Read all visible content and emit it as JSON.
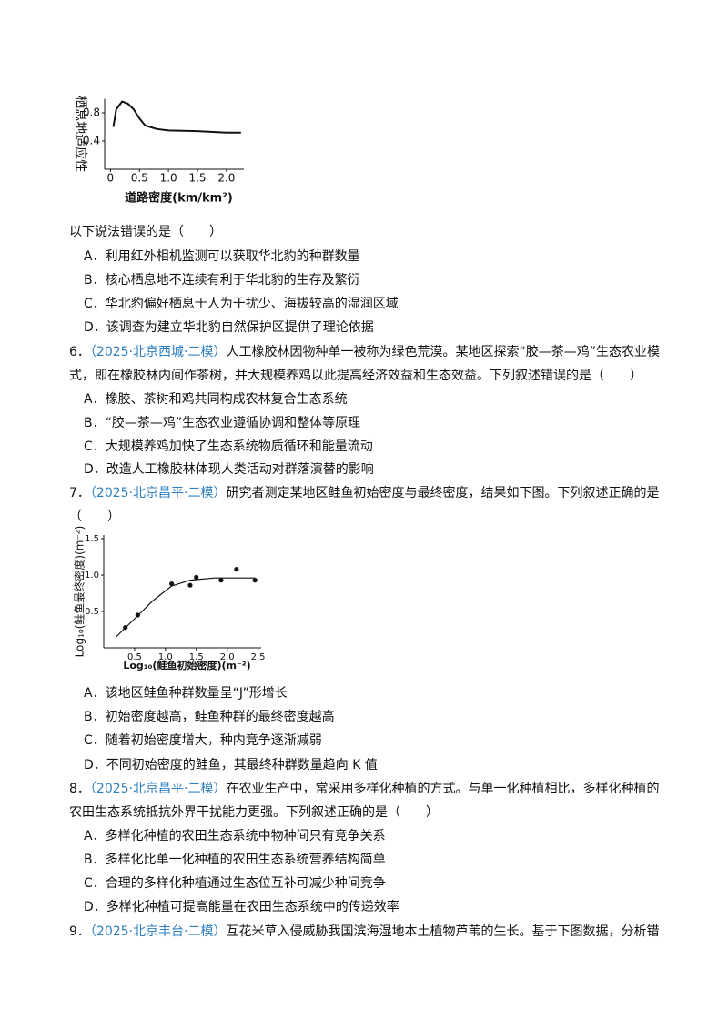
{
  "chart_data": [
    {
      "type": "line",
      "ylabel": "栖息地适应性",
      "xlabel": "道路密度(km/km²)",
      "xlim": [
        -0.1,
        2.3
      ],
      "ylim": [
        0,
        1.0
      ],
      "xticks": [
        0,
        0.5,
        {
          "value": 1.0,
          "label": "1.0"
        },
        1.5,
        {
          "value": 2.0,
          "label": "2.0"
        }
      ],
      "yticks": [
        0.4,
        0.8
      ],
      "color": "#111111",
      "x": [
        0.05,
        0.1,
        0.2,
        0.3,
        0.4,
        0.5,
        0.6,
        0.8,
        1.0,
        1.5,
        2.0,
        2.25
      ],
      "y": [
        0.6,
        0.85,
        0.96,
        0.93,
        0.85,
        0.72,
        0.62,
        0.57,
        0.55,
        0.54,
        0.52,
        0.52
      ]
    },
    {
      "type": "scatter",
      "ylabel": "Log₁₀(鲑鱼最终密度)(m⁻²)",
      "xlabel": "Log₁₀(鲑鱼初始密度)(m⁻²)",
      "xlim": [
        0,
        2.55
      ],
      "ylim": [
        0,
        1.55
      ],
      "xticks": [
        0.5,
        {
          "value": 1.0,
          "label": "1.0"
        },
        1.5,
        {
          "value": 2.0,
          "label": "2.0"
        },
        2.5
      ],
      "yticks": [
        0.5,
        {
          "value": 1.0,
          "label": "1.0"
        },
        1.5
      ],
      "color": "#111111",
      "points": {
        "x": [
          0.35,
          0.55,
          1.1,
          1.4,
          1.5,
          1.9,
          2.15,
          2.45
        ],
        "y": [
          0.28,
          0.45,
          0.88,
          0.86,
          0.97,
          0.93,
          1.08,
          0.93
        ]
      },
      "curve": {
        "x": [
          0.2,
          0.5,
          0.8,
          1.1,
          1.4,
          1.8,
          2.2,
          2.45
        ],
        "y": [
          0.15,
          0.4,
          0.65,
          0.85,
          0.93,
          0.96,
          0.96,
          0.96
        ]
      }
    }
  ],
  "document": {
    "q5": {
      "prompt": "以下说法错误的是（　　）",
      "options": [
        "A．利用红外相机监测可以获取华北豹的种群数量",
        "B．核心栖息地不连续有利于华北豹的生存及繁衍",
        "C．华北豹偏好栖息于人为干扰少、海拔较高的湿润区域",
        "D．该调查为建立华北豹自然保护区提供了理论依据"
      ]
    },
    "q6": {
      "number": "6．",
      "source": "（2025·北京西城·二模）",
      "stem": "人工橡胶林因物种单一被称为绿色荒漠。某地区探索“胶—茶—鸡”生态农业模式，即在橡胶林内间作茶树，并大规模养鸡以此提高经济效益和生态效益。下列叙述错误的是（　　）",
      "options": [
        "A．橡胶、茶树和鸡共同构成农林复合生态系统",
        "B．“胶—茶—鸡”生态农业遵循协调和整体等原理",
        "C．大规模养鸡加快了生态系统物质循环和能量流动",
        "D．改造人工橡胶林体现人类活动对群落演替的影响"
      ]
    },
    "q7": {
      "number": "7．",
      "source": "（2025·北京昌平·二模）",
      "stem": "研究者测定某地区鲑鱼初始密度与最终密度，结果如下图。下列叙述正确的是（　　）",
      "options": [
        "A．该地区鲑鱼种群数量呈“J”形增长",
        "B．初始密度越高，鲑鱼种群的最终密度越高",
        "C．随着初始密度增大，种内竞争逐渐减弱",
        "D．不同初始密度的鲑鱼，其最终种群数量趋向 K 值"
      ]
    },
    "q8": {
      "number": "8．",
      "source": "（2025·北京昌平·二模）",
      "stem": "在农业生产中，常采用多样化种植的方式。与单一化种植相比，多样化种植的农田生态系统抵抗外界干扰能力更强。下列叙述正确的是（　　）",
      "options": [
        "A．多样化种植的农田生态系统中物种间只有竞争关系",
        "B．多样化比单一化种植的农田生态系统营养结构简单",
        "C．合理的多样化种植通过生态位互补可减少种间竞争",
        "D．多样化种植可提高能量在农田生态系统中的传递效率"
      ]
    },
    "q9": {
      "number": "9．",
      "source": "（2025·北京丰台·二模）",
      "stem": "互花米草入侵威胁我国滨海湿地本土植物芦苇的生长。基于下图数据，分析错"
    }
  }
}
